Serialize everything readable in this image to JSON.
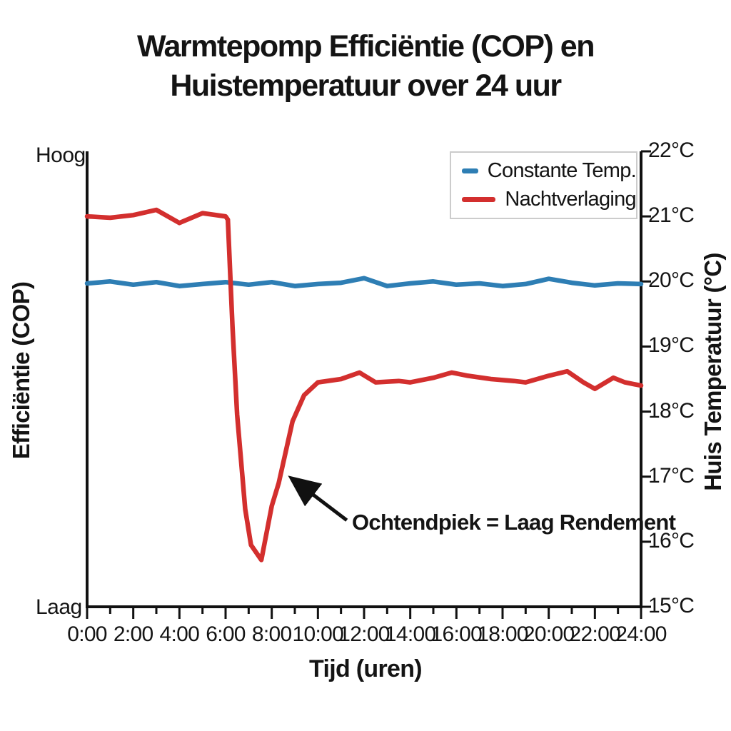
{
  "title": {
    "line1": "Warmtepomp Efficiëntie (COP) en",
    "line2": "Huistemperatuur over 24 uur"
  },
  "annotation": {
    "text": "Ochtendpiek = Laag Rendement"
  },
  "legend": {
    "items": [
      {
        "label": "Constante Temp.",
        "color": "#2e7eb4"
      },
      {
        "label": "Nachtverlaging",
        "color": "#d32f2e"
      }
    ]
  },
  "colors": {
    "axis": "#111111",
    "text": "#141414",
    "legend_border": "#cccccc",
    "annotation_arrow": "#111111"
  },
  "chart_data": {
    "type": "line",
    "title": "Warmtepomp Efficiëntie (COP) en Huistemperatuur over 24 uur",
    "xlabel": "Tijd (uren)",
    "ylabel_left": "Efficiëntie (COP)",
    "ylabel_right": "Huis Temperatuur (°C)",
    "left_axis_qualitative_labels": {
      "top": "Hoog",
      "bottom": "Laag"
    },
    "x_range_hours": [
      0,
      24
    ],
    "y_right_range_c": [
      15,
      22
    ],
    "x_tick_labels": [
      "0:00",
      "2:00",
      "4:00",
      "6:00",
      "8:00",
      "10:00",
      "12:00",
      "14:00",
      "16:00",
      "18:00",
      "20:00",
      "22:00",
      "24:00"
    ],
    "x_tick_hours": [
      0,
      2,
      4,
      6,
      8,
      10,
      12,
      14,
      16,
      18,
      20,
      22,
      24
    ],
    "x_minor_tick_hours": [
      1,
      3,
      5,
      7,
      9,
      11,
      13,
      15,
      17,
      19,
      21,
      23
    ],
    "y_right_tick_labels": [
      "22°C",
      "21°C",
      "20°C",
      "19°C",
      "18°C",
      "17°C",
      "16°C",
      "15°C"
    ],
    "y_right_tick_values": [
      22,
      21,
      20,
      19,
      18,
      17,
      16,
      15
    ],
    "grid": false,
    "legend_position": "top-right",
    "series": [
      {
        "name": "Constante Temp.",
        "color": "#2e7eb4",
        "x": [
          0,
          1,
          2,
          3,
          4,
          5,
          6,
          7,
          8,
          9,
          10,
          11,
          12,
          13,
          14,
          15,
          16,
          17,
          18,
          19,
          20,
          21,
          22,
          23,
          24
        ],
        "y": [
          19.97,
          20.0,
          19.95,
          19.99,
          19.93,
          19.96,
          19.99,
          19.95,
          19.99,
          19.93,
          19.96,
          19.98,
          20.05,
          19.93,
          19.97,
          20.0,
          19.95,
          19.97,
          19.93,
          19.96,
          20.04,
          19.98,
          19.94,
          19.97,
          19.96
        ]
      },
      {
        "name": "Nachtverlaging",
        "color": "#d32f2e",
        "x": [
          0,
          1,
          2,
          3,
          4,
          5,
          6,
          6.1,
          6.3,
          6.5,
          6.85,
          7.1,
          7.55,
          8,
          8.3,
          8.9,
          9.4,
          10,
          11,
          11.8,
          12.5,
          13.5,
          14,
          15,
          15.8,
          16.5,
          17.5,
          18.5,
          19,
          20,
          20.8,
          21.5,
          22,
          22.8,
          23.3,
          24
        ],
        "y": [
          21.0,
          20.98,
          21.02,
          21.1,
          20.9,
          21.05,
          21.0,
          20.95,
          19.3,
          17.95,
          16.5,
          15.95,
          15.72,
          16.55,
          16.9,
          17.85,
          18.25,
          18.45,
          18.5,
          18.6,
          18.45,
          18.47,
          18.45,
          18.52,
          18.6,
          18.55,
          18.5,
          18.47,
          18.45,
          18.55,
          18.62,
          18.45,
          18.35,
          18.52,
          18.45,
          18.4
        ]
      }
    ],
    "annotation": {
      "text": "Ochtendpiek = Laag Rendement",
      "arrow_tail_data_xy": [
        11.25,
        16.33
      ],
      "arrow_tip_data_xy": [
        8.95,
        16.95
      ]
    }
  }
}
